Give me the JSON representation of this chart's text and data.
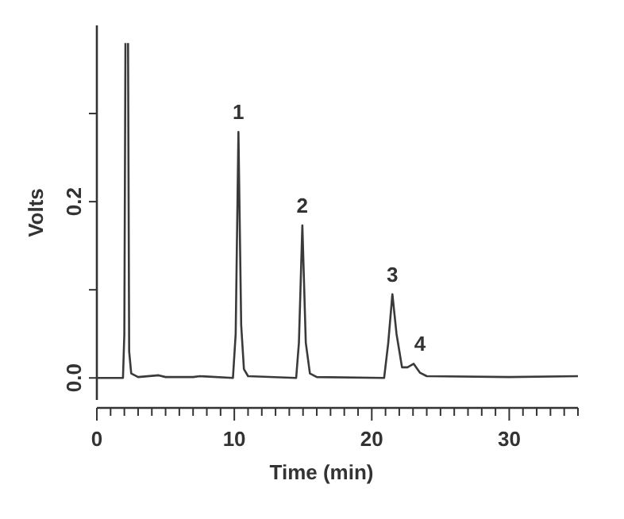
{
  "chart_data": {
    "type": "line",
    "xlabel": "Time (min)",
    "ylabel": "Volts",
    "x": [
      0,
      1.9,
      2.0,
      2.08,
      2.1,
      2.25,
      2.27,
      2.35,
      2.5,
      3,
      4.5,
      5,
      7,
      7.5,
      9.9,
      10.1,
      10.3,
      10.5,
      10.7,
      11,
      14.5,
      14.7,
      14.95,
      15.2,
      15.5,
      16,
      20.9,
      21.2,
      21.5,
      21.8,
      22.2,
      22.6,
      23.05,
      23.5,
      24,
      30,
      35
    ],
    "series": [
      {
        "color": "#3a3a3a",
        "values": [
          0,
          0,
          0.05,
          0.38,
          null,
          null,
          0.38,
          0.03,
          0.005,
          0.001,
          0.003,
          0.001,
          0.001,
          0.002,
          0,
          0.05,
          0.279,
          0.06,
          0.01,
          0.002,
          0,
          0.04,
          0.173,
          0.04,
          0.005,
          0.001,
          0,
          0.04,
          0.095,
          0.05,
          0.012,
          0.012,
          0.016,
          0.006,
          0.002,
          0.001,
          0.002
        ]
      }
    ],
    "xlim": [
      0,
      35
    ],
    "ylim": [
      -0.025,
      0.4
    ],
    "xticks": [
      0,
      {
        "value": 1,
        "label": null
      },
      {
        "value": 2,
        "label": null
      },
      {
        "value": 3,
        "label": null
      },
      {
        "value": 4,
        "label": null
      },
      {
        "value": 5,
        "label": null
      },
      {
        "value": 6,
        "label": null
      },
      {
        "value": 7,
        "label": null
      },
      {
        "value": 8,
        "label": null
      },
      {
        "value": 9,
        "label": null
      },
      10,
      {
        "value": 11,
        "label": null
      },
      {
        "value": 12,
        "label": null
      },
      {
        "value": 13,
        "label": null
      },
      {
        "value": 14,
        "label": null
      },
      {
        "value": 15,
        "label": null
      },
      {
        "value": 16,
        "label": null
      },
      {
        "value": 17,
        "label": null
      },
      {
        "value": 18,
        "label": null
      },
      {
        "value": 19,
        "label": null
      },
      20,
      {
        "value": 21,
        "label": null
      },
      {
        "value": 22,
        "label": null
      },
      {
        "value": 23,
        "label": null
      },
      {
        "value": 24,
        "label": null
      },
      {
        "value": 25,
        "label": null
      },
      {
        "value": 26,
        "label": null
      },
      {
        "value": 27,
        "label": null
      },
      {
        "value": 28,
        "label": null
      },
      {
        "value": 29,
        "label": null
      },
      30,
      {
        "value": 31,
        "label": null
      },
      {
        "value": 32,
        "label": null
      },
      {
        "value": 33,
        "label": null
      },
      {
        "value": 34,
        "label": null
      },
      {
        "value": 35,
        "label": null
      }
    ],
    "yticks": [
      {
        "value": 0,
        "label": "0.0"
      },
      {
        "value": 0.1,
        "label": null
      },
      {
        "value": 0.2,
        "label": "0.2"
      },
      {
        "value": 0.3,
        "label": null
      }
    ],
    "annotations": [
      {
        "text": "1",
        "x": 10.3,
        "y": 0.279
      },
      {
        "text": "2",
        "x": 14.95,
        "y": 0.173
      },
      {
        "text": "3",
        "x": 21.5,
        "y": 0.095
      },
      {
        "text": "4",
        "x": 23.05,
        "y": 0.016
      }
    ],
    "grid": false,
    "legend": false,
    "marker": "none",
    "line_style": "solid"
  }
}
